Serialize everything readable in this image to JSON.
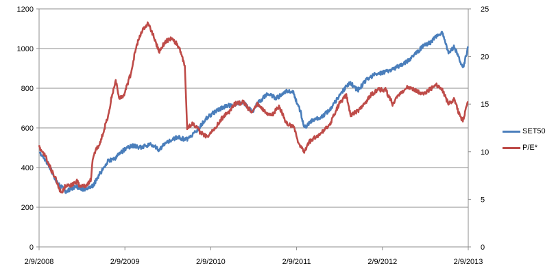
{
  "chart_data": {
    "type": "line",
    "title": "",
    "xlabel": "",
    "ylabel": "",
    "x_tick_labels": [
      "2/9/2008",
      "2/9/2009",
      "2/9/2010",
      "2/9/2011",
      "2/9/2012",
      "2/9/2013"
    ],
    "x_range": [
      "2008-09-02",
      "2013-09-02"
    ],
    "y_left": {
      "ticks": [
        "0",
        "200",
        "400",
        "600",
        "800",
        "1000",
        "1200"
      ],
      "ylim": [
        0,
        1200
      ]
    },
    "y_right": {
      "ticks": [
        "0",
        "5",
        "10",
        "15",
        "20",
        "25"
      ],
      "ylim": [
        0,
        25
      ]
    },
    "grid": "horizontal",
    "legend_position": "right",
    "series": [
      {
        "name": "SET50",
        "axis": "left",
        "color": "#4A7EBB",
        "points": [
          [
            "2008-09-02",
            480
          ],
          [
            "2008-10-10",
            420
          ],
          [
            "2008-11-20",
            320
          ],
          [
            "2008-12-25",
            280
          ],
          [
            "2009-02-05",
            305
          ],
          [
            "2009-03-10",
            290
          ],
          [
            "2009-04-20",
            310
          ],
          [
            "2009-05-25",
            380
          ],
          [
            "2009-06-20",
            430
          ],
          [
            "2009-07-25",
            450
          ],
          [
            "2009-08-30",
            490
          ],
          [
            "2009-10-05",
            510
          ],
          [
            "2009-11-10",
            500
          ],
          [
            "2009-12-20",
            520
          ],
          [
            "2010-01-25",
            490
          ],
          [
            "2010-03-01",
            530
          ],
          [
            "2010-04-15",
            555
          ],
          [
            "2010-05-20",
            540
          ],
          [
            "2010-07-01",
            580
          ],
          [
            "2010-08-15",
            650
          ],
          [
            "2010-10-01",
            690
          ],
          [
            "2010-11-10",
            710
          ],
          [
            "2010-12-15",
            720
          ],
          [
            "2011-01-20",
            730
          ],
          [
            "2011-02-25",
            680
          ],
          [
            "2011-03-25",
            730
          ],
          [
            "2011-05-01",
            770
          ],
          [
            "2011-06-10",
            750
          ],
          [
            "2011-07-25",
            790
          ],
          [
            "2011-08-20",
            775
          ],
          [
            "2011-09-20",
            680
          ],
          [
            "2011-10-05",
            600
          ],
          [
            "2011-11-10",
            640
          ],
          [
            "2011-12-15",
            650
          ],
          [
            "2012-01-20",
            690
          ],
          [
            "2012-03-01",
            760
          ],
          [
            "2012-04-15",
            830
          ],
          [
            "2012-05-20",
            790
          ],
          [
            "2012-06-25",
            840
          ],
          [
            "2012-08-01",
            870
          ],
          [
            "2012-09-10",
            880
          ],
          [
            "2012-10-20",
            900
          ],
          [
            "2012-12-01",
            920
          ],
          [
            "2013-01-10",
            960
          ],
          [
            "2013-02-20",
            1010
          ],
          [
            "2013-03-25",
            1030
          ],
          [
            "2013-04-25",
            1070
          ],
          [
            "2013-05-15",
            1080
          ],
          [
            "2013-06-10",
            980
          ],
          [
            "2013-07-05",
            1010
          ],
          [
            "2013-07-25",
            950
          ],
          [
            "2013-08-10",
            900
          ],
          [
            "2013-08-25",
            970
          ],
          [
            "2013-09-02",
            1010
          ]
        ]
      },
      {
        "name": "P/E*",
        "axis": "right",
        "color": "#BE4B48",
        "points": [
          [
            "2008-09-02",
            10.5
          ],
          [
            "2008-10-01",
            9.5
          ],
          [
            "2008-10-25",
            8.0
          ],
          [
            "2008-11-15",
            7.0
          ],
          [
            "2008-12-05",
            5.6
          ],
          [
            "2008-12-25",
            6.5
          ],
          [
            "2009-01-20",
            6.5
          ],
          [
            "2009-02-10",
            6.9
          ],
          [
            "2009-02-25",
            6.3
          ],
          [
            "2009-03-20",
            6.5
          ],
          [
            "2009-04-10",
            7.0
          ],
          [
            "2009-04-20",
            9.5
          ],
          [
            "2009-05-20",
            11.0
          ],
          [
            "2009-06-20",
            13.5
          ],
          [
            "2009-07-10",
            16.0
          ],
          [
            "2009-07-25",
            17.5
          ],
          [
            "2009-08-10",
            15.5
          ],
          [
            "2009-08-30",
            16.0
          ],
          [
            "2009-09-25",
            18.0
          ],
          [
            "2009-10-20",
            21.0
          ],
          [
            "2009-11-10",
            22.5
          ],
          [
            "2009-12-10",
            23.5
          ],
          [
            "2010-01-05",
            22.0
          ],
          [
            "2010-01-25",
            20.5
          ],
          [
            "2010-02-20",
            21.5
          ],
          [
            "2010-03-20",
            22.0
          ],
          [
            "2010-04-20",
            21.0
          ],
          [
            "2010-05-15",
            19.0
          ],
          [
            "2010-05-25",
            12.5
          ],
          [
            "2010-06-20",
            13.0
          ],
          [
            "2010-07-20",
            12.0
          ],
          [
            "2010-08-20",
            11.5
          ],
          [
            "2010-09-20",
            12.5
          ],
          [
            "2010-10-20",
            13.5
          ],
          [
            "2010-11-20",
            14.2
          ],
          [
            "2010-12-10",
            15.0
          ],
          [
            "2011-01-20",
            15.2
          ],
          [
            "2011-02-20",
            14.2
          ],
          [
            "2011-03-20",
            15.0
          ],
          [
            "2011-04-20",
            14.2
          ],
          [
            "2011-05-20",
            13.8
          ],
          [
            "2011-06-20",
            14.8
          ],
          [
            "2011-07-20",
            13.0
          ],
          [
            "2011-08-25",
            12.5
          ],
          [
            "2011-09-10",
            11.0
          ],
          [
            "2011-10-05",
            10.0
          ],
          [
            "2011-10-25",
            11.0
          ],
          [
            "2011-11-20",
            11.5
          ],
          [
            "2011-12-20",
            12.0
          ],
          [
            "2012-01-25",
            13.0
          ],
          [
            "2012-03-01",
            15.0
          ],
          [
            "2012-04-01",
            16.0
          ],
          [
            "2012-04-20",
            13.8
          ],
          [
            "2012-05-15",
            14.2
          ],
          [
            "2012-06-20",
            15.0
          ],
          [
            "2012-07-15",
            16.0
          ],
          [
            "2012-08-15",
            16.5
          ],
          [
            "2012-09-15",
            16.5
          ],
          [
            "2012-10-15",
            15.0
          ],
          [
            "2012-11-20",
            16.2
          ],
          [
            "2012-12-20",
            16.8
          ],
          [
            "2013-01-20",
            16.5
          ],
          [
            "2013-02-20",
            16.0
          ],
          [
            "2013-03-20",
            16.5
          ],
          [
            "2013-04-20",
            17.0
          ],
          [
            "2013-05-15",
            16.5
          ],
          [
            "2013-06-10",
            15.0
          ],
          [
            "2013-07-05",
            15.5
          ],
          [
            "2013-07-25",
            14.0
          ],
          [
            "2013-08-10",
            13.2
          ],
          [
            "2013-08-25",
            14.8
          ],
          [
            "2013-09-02",
            15.2
          ]
        ]
      }
    ]
  }
}
